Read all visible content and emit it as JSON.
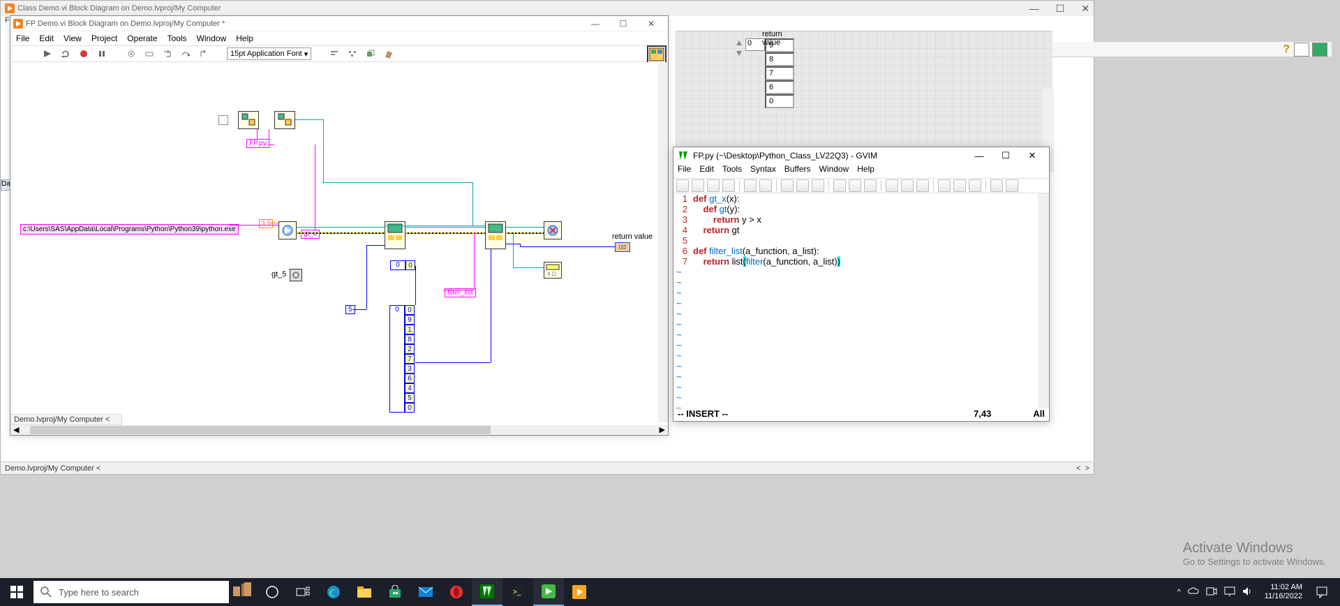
{
  "labview_bg": {
    "title": "Class Demo.vi Block Diagram on Demo.lvproj/My Computer",
    "menu_start": "Fi",
    "footer": "Demo.lvproj/My Computer  <",
    "icon_color": "#f58220"
  },
  "labview_main": {
    "title": "FP Demo.vi Block Diagram on Demo.lvproj/My Computer *",
    "icon_color": "#f58220",
    "menus": [
      "File",
      "Edit",
      "View",
      "Project",
      "Operate",
      "Tools",
      "Window",
      "Help"
    ],
    "font_select": "15pt Application Font",
    "footer": "Demo.lvproj/My Computer  <",
    "python_path": "c:\\Users\\SAS\\AppData\\Local\\Programs\\Python\\Python39\\python.exe",
    "python_version": "3.9",
    "fp_py_label": "FP.py",
    "gt_x_label": "gt_x",
    "gt_5_label": "gt_5",
    "filter_list_label": "filter_list",
    "const_5": "5",
    "array_idx_a": "0",
    "array_vals_a": [
      "0"
    ],
    "array_idx_b": "0",
    "array_vals_b": [
      "0",
      "9",
      "1",
      "8",
      "2",
      "7",
      "3",
      "6",
      "4",
      "5",
      "0"
    ],
    "return_label": "return value",
    "i32_term": "I32"
  },
  "front_panel": {
    "return_label": "return value",
    "idx": "0",
    "cells": [
      "9",
      "8",
      "7",
      "6",
      "0"
    ]
  },
  "gvim": {
    "title": "FP.py (~\\Desktop\\Python_Class_LV22Q3) - GVIM",
    "menus": [
      "File",
      "Edit",
      "Tools",
      "Syntax",
      "Buffers",
      "Window",
      "Help"
    ],
    "status_mode": "-- INSERT --",
    "status_pos": "7,43",
    "status_pct": "All",
    "code_lines": [
      {
        "n": "1",
        "seg": [
          [
            "def ",
            "kw-def"
          ],
          [
            "gt_x",
            "kw-id"
          ],
          [
            "(x):",
            "kw-plain"
          ]
        ]
      },
      {
        "n": "2",
        "seg": [
          [
            "    ",
            "kw-plain"
          ],
          [
            "def ",
            "kw-def"
          ],
          [
            "gt",
            "kw-id"
          ],
          [
            "(y):",
            "kw-plain"
          ]
        ]
      },
      {
        "n": "3",
        "seg": [
          [
            "        ",
            "kw-plain"
          ],
          [
            "return",
            "kw-ret"
          ],
          [
            " y > x",
            "kw-plain"
          ]
        ]
      },
      {
        "n": "4",
        "seg": [
          [
            "    ",
            "kw-plain"
          ],
          [
            "return",
            "kw-ret"
          ],
          [
            " gt",
            "kw-plain"
          ]
        ]
      },
      {
        "n": "5",
        "seg": [
          [
            "",
            "kw-plain"
          ]
        ]
      },
      {
        "n": "6",
        "seg": [
          [
            "def ",
            "kw-def"
          ],
          [
            "filter_list",
            "kw-id"
          ],
          [
            "(a_function, a_list):",
            "kw-plain"
          ]
        ]
      },
      {
        "n": "7",
        "seg": [
          [
            "    ",
            "kw-plain"
          ],
          [
            "return",
            "kw-ret"
          ],
          [
            " list",
            "kw-plain"
          ],
          [
            "(",
            "gvim-paren-match"
          ],
          [
            "filter",
            "kw-id"
          ],
          [
            "(a_function, a_list)",
            "kw-plain"
          ],
          [
            ")",
            "gvim-paren-match"
          ]
        ]
      }
    ]
  },
  "watermark": {
    "l1": "Activate Windows",
    "l2": "Go to Settings to activate Windows."
  },
  "taskbar": {
    "search_placeholder": "Type here to search",
    "time": "11:02 AM",
    "date": "11/16/2022"
  },
  "colors": {
    "labview_orange": "#f58220",
    "teal": "#0aa",
    "pink": "#f0f",
    "blue": "#00f",
    "taskbar": "#1b1f2a",
    "gvim_red": "#b22",
    "gvim_blue": "#06c"
  }
}
